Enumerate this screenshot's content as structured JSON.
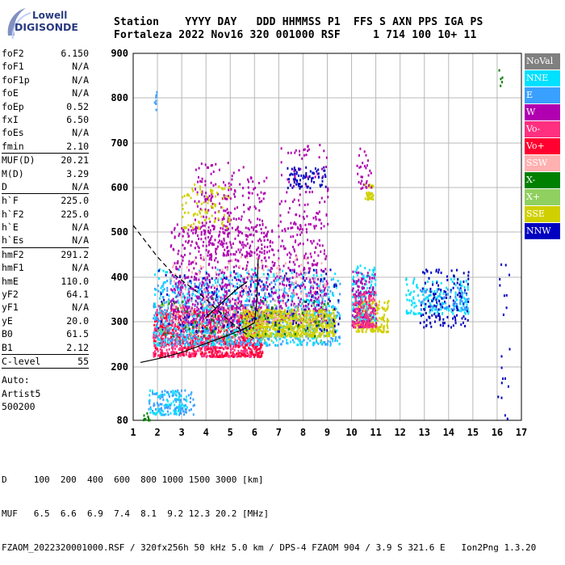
{
  "logo": {
    "line1": "Lowell",
    "line2": "DIGISONDE"
  },
  "header": {
    "line1": "Station    YYYY DAY   DDD HHMMSS P1  FFS S AXN PPS IGA PS",
    "line2": "Fortaleza 2022 Nov16 320 001000 RSF     1 714 100 10+ 11"
  },
  "params_groups": [
    [
      {
        "label": "foF2",
        "value": "6.150"
      },
      {
        "label": "foF1",
        "value": "N/A"
      },
      {
        "label": "foF1p",
        "value": "N/A"
      },
      {
        "label": "foE",
        "value": "N/A"
      },
      {
        "label": "foEp",
        "value": "0.52"
      },
      {
        "label": "fxI",
        "value": "6.50"
      },
      {
        "label": "foEs",
        "value": "N/A"
      },
      {
        "label": "fmin",
        "value": "2.10"
      }
    ],
    [
      {
        "label": "MUF(D)",
        "value": "20.21"
      },
      {
        "label": "M(D)",
        "value": "3.29"
      },
      {
        "label": "D",
        "value": "N/A"
      }
    ],
    [
      {
        "label": "h`F",
        "value": "225.0"
      },
      {
        "label": "h`F2",
        "value": "225.0"
      },
      {
        "label": "h`E",
        "value": "N/A"
      },
      {
        "label": "h`Es",
        "value": "N/A"
      }
    ],
    [
      {
        "label": "hmF2",
        "value": "291.2"
      },
      {
        "label": "hmF1",
        "value": "N/A"
      },
      {
        "label": "hmE",
        "value": "110.0"
      },
      {
        "label": "yF2",
        "value": "64.1"
      },
      {
        "label": "yF1",
        "value": "N/A"
      },
      {
        "label": "yE",
        "value": "20.0"
      },
      {
        "label": "B0",
        "value": "61.5"
      },
      {
        "label": "B1",
        "value": "2.12"
      }
    ],
    [
      {
        "label": "C-level",
        "value": "55"
      }
    ]
  ],
  "auto": {
    "line1": "Auto:",
    "line2": "Artist5",
    "line3": "500200"
  },
  "legend": [
    {
      "label": "NoVal",
      "color": "#808080"
    },
    {
      "label": "NNE",
      "color": "#00e0ff"
    },
    {
      "label": "E",
      "color": "#3aa0ff"
    },
    {
      "label": "W",
      "color": "#b000b0"
    },
    {
      "label": "Vo-",
      "color": "#ff3080"
    },
    {
      "label": "Vo+",
      "color": "#ff0030"
    },
    {
      "label": "SSW",
      "color": "#ffb0b0"
    },
    {
      "label": "X-",
      "color": "#008000"
    },
    {
      "label": "X+",
      "color": "#90d060"
    },
    {
      "label": "SSE",
      "color": "#d0d000"
    },
    {
      "label": "NNW",
      "color": "#0000c0"
    }
  ],
  "footer": {
    "line1": "D     100  200  400  600  800 1000 1500 3000 [km]",
    "line2": "MUF   6.5  6.6  6.9  7.4  8.1  9.2 12.3 20.2 [MHz]",
    "line3": "FZAOM_2022320001000.RSF / 320fx256h 50 kHz 5.0 km / DPS-4 FZAOM 904 / 3.9 S 321.6 E   Ion2Png 1.3.20"
  },
  "chart_data": {
    "type": "scatter",
    "xlim": [
      1,
      17
    ],
    "ylim": [
      80,
      900
    ],
    "x_ticks": [
      "1",
      "2",
      "3",
      "4",
      "5",
      "6",
      "7",
      "8",
      "9",
      "10",
      "11",
      "12",
      "13",
      "14",
      "15",
      "16",
      "17"
    ],
    "y_ticks": [
      "80",
      "200",
      "300",
      "400",
      "500",
      "600",
      "700",
      "800",
      "900"
    ],
    "y_tick_values": [
      80,
      200,
      300,
      400,
      500,
      600,
      700,
      800,
      900
    ],
    "grid": true,
    "legend_placement": "right",
    "clusters": [
      {
        "direction": "E",
        "x": [
          1.6,
          3.5
        ],
        "y": [
          95,
          150
        ],
        "n": 120
      },
      {
        "direction": "NNE",
        "x": [
          1.6,
          3.2
        ],
        "y": [
          95,
          150
        ],
        "n": 60
      },
      {
        "direction": "X-",
        "x": [
          1.4,
          1.7
        ],
        "y": [
          82,
          100
        ],
        "n": 10
      },
      {
        "direction": "Vo-",
        "x": [
          1.8,
          6.3
        ],
        "y": [
          225,
          340
        ],
        "n": 900
      },
      {
        "direction": "Vo+",
        "x": [
          1.8,
          6.3
        ],
        "y": [
          225,
          330
        ],
        "n": 400
      },
      {
        "direction": "E",
        "x": [
          1.8,
          9.5
        ],
        "y": [
          250,
          400
        ],
        "n": 700
      },
      {
        "direction": "NNE",
        "x": [
          1.8,
          9.5
        ],
        "y": [
          250,
          420
        ],
        "n": 500
      },
      {
        "direction": "W",
        "x": [
          2.5,
          9.0
        ],
        "y": [
          300,
          520
        ],
        "n": 900
      },
      {
        "direction": "SSE",
        "x": [
          5.5,
          9.3
        ],
        "y": [
          270,
          330
        ],
        "n": 700
      },
      {
        "direction": "NNW",
        "x": [
          2.0,
          9.5
        ],
        "y": [
          280,
          420
        ],
        "n": 180
      },
      {
        "direction": "SSW",
        "x": [
          2.5,
          9.0
        ],
        "y": [
          300,
          450
        ],
        "n": 160
      },
      {
        "direction": "X+",
        "x": [
          2.0,
          9.0
        ],
        "y": [
          260,
          350
        ],
        "n": 120
      },
      {
        "direction": "X-",
        "x": [
          2.0,
          9.0
        ],
        "y": [
          270,
          360
        ],
        "n": 60
      },
      {
        "direction": "W",
        "x": [
          3.5,
          6.5
        ],
        "y": [
          450,
          660
        ],
        "n": 250
      },
      {
        "direction": "SSE",
        "x": [
          3.0,
          5.0
        ],
        "y": [
          510,
          610
        ],
        "n": 90
      },
      {
        "direction": "W",
        "x": [
          7.0,
          9.0
        ],
        "y": [
          520,
          700
        ],
        "n": 90
      },
      {
        "direction": "NNW",
        "x": [
          7.3,
          9.0
        ],
        "y": [
          600,
          650
        ],
        "n": 70
      },
      {
        "direction": "SSE",
        "x": [
          10.1,
          11.5
        ],
        "y": [
          280,
          350
        ],
        "n": 200
      },
      {
        "direction": "NNE",
        "x": [
          10.0,
          11.0
        ],
        "y": [
          300,
          430
        ],
        "n": 150
      },
      {
        "direction": "W",
        "x": [
          10.0,
          11.0
        ],
        "y": [
          290,
          420
        ],
        "n": 120
      },
      {
        "direction": "Vo-",
        "x": [
          10.0,
          11.0
        ],
        "y": [
          290,
          370
        ],
        "n": 120
      },
      {
        "direction": "SSE",
        "x": [
          10.5,
          10.9
        ],
        "y": [
          575,
          610
        ],
        "n": 40
      },
      {
        "direction": "W",
        "x": [
          10.2,
          10.8
        ],
        "y": [
          600,
          690
        ],
        "n": 30
      },
      {
        "direction": "NNE",
        "x": [
          12.2,
          14.8
        ],
        "y": [
          320,
          400
        ],
        "n": 160
      },
      {
        "direction": "NNW",
        "x": [
          12.8,
          14.8
        ],
        "y": [
          290,
          420
        ],
        "n": 140
      },
      {
        "direction": "E",
        "x": [
          12.8,
          14.8
        ],
        "y": [
          330,
          380
        ],
        "n": 60
      },
      {
        "direction": "X-",
        "x": [
          16.0,
          16.2
        ],
        "y": [
          820,
          870
        ],
        "n": 5
      },
      {
        "direction": "NNW",
        "x": [
          16.0,
          16.5
        ],
        "y": [
          80,
          500
        ],
        "n": 20
      },
      {
        "direction": "E",
        "x": [
          1.85,
          1.95
        ],
        "y": [
          775,
          820
        ],
        "n": 8
      }
    ],
    "curves": [
      {
        "name": "solid-trace",
        "style": "solid",
        "points": [
          [
            1.3,
            210
          ],
          [
            2.0,
            218
          ],
          [
            3.0,
            232
          ],
          [
            4.0,
            252
          ],
          [
            5.0,
            272
          ],
          [
            5.6,
            285
          ],
          [
            6.0,
            298
          ],
          [
            6.1,
            350
          ],
          [
            6.15,
            440
          ]
        ]
      },
      {
        "name": "inner-trace",
        "style": "solid",
        "points": [
          [
            4.0,
            310
          ],
          [
            4.6,
            340
          ],
          [
            5.2,
            370
          ],
          [
            5.7,
            390
          ]
        ]
      },
      {
        "name": "dashed-trace",
        "style": "dashed",
        "points": [
          [
            1.0,
            515
          ],
          [
            1.5,
            480
          ],
          [
            2.0,
            445
          ],
          [
            2.6,
            410
          ],
          [
            3.2,
            385
          ],
          [
            3.8,
            360
          ],
          [
            4.4,
            330
          ],
          [
            5.0,
            300
          ],
          [
            5.6,
            275
          ],
          [
            6.0,
            262
          ]
        ]
      }
    ]
  }
}
